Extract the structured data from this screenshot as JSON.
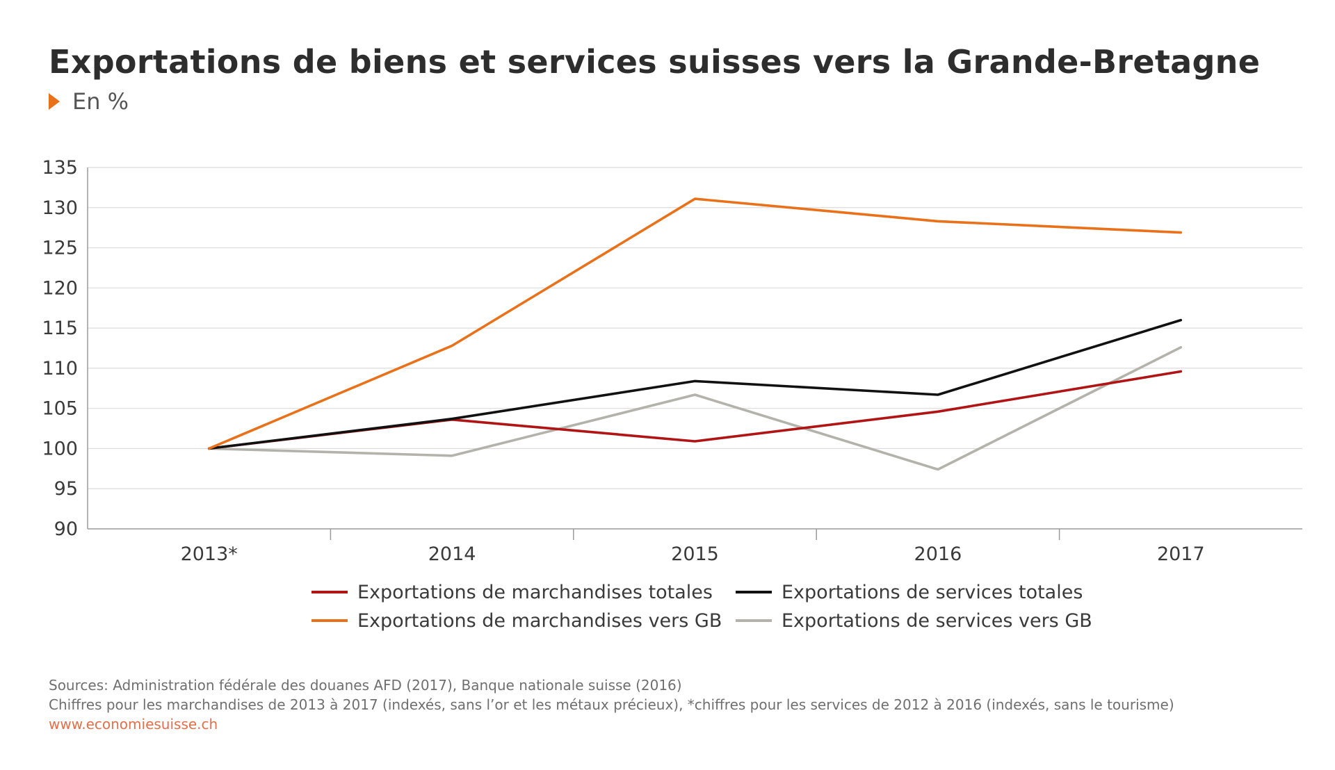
{
  "title": "Exportations de biens et services suisses vers la Grande-Bretagne",
  "subtitle": "En %",
  "colors": {
    "accent": "#e8711a",
    "grid": "#dcdcdc",
    "axis": "#9a9a9a",
    "url": "#e0704a"
  },
  "chart_data": {
    "type": "line",
    "title": "Exportations de biens et services suisses vers la Grande-Bretagne",
    "subtitle": "En %",
    "categories": [
      "2013*",
      "2014",
      "2015",
      "2016",
      "2017"
    ],
    "ylim": [
      90,
      135
    ],
    "yticks": [
      90,
      95,
      100,
      105,
      110,
      115,
      120,
      125,
      130,
      135
    ],
    "grid": true,
    "legend_position": "bottom",
    "series": [
      {
        "name": "Exportations de marchandises totales",
        "color": "#b01414",
        "values": [
          100,
          103.6,
          100.9,
          104.6,
          109.6
        ]
      },
      {
        "name": "Exportations de services totales",
        "color": "#111111",
        "values": [
          100,
          103.7,
          108.4,
          106.7,
          116
        ]
      },
      {
        "name": "Exportations de marchandises vers GB",
        "color": "#e8711a",
        "values": [
          100,
          112.8,
          131.1,
          128.3,
          126.9
        ]
      },
      {
        "name": "Exportations de services vers GB",
        "color": "#b3b3ab",
        "values": [
          100,
          99.1,
          106.7,
          97.4,
          112.6
        ]
      }
    ]
  },
  "legend": [
    {
      "label": "Exportations de marchandises totales",
      "color": "#b01414"
    },
    {
      "label": "Exportations de services totales",
      "color": "#111111"
    },
    {
      "label": "Exportations de marchandises vers GB",
      "color": "#e8711a"
    },
    {
      "label": "Exportations de services vers GB",
      "color": "#b3b3ab"
    }
  ],
  "footer": {
    "sources": "Sources: Administration fédérale des douanes AFD (2017), Banque nationale suisse (2016)",
    "note": "Chiffres pour les marchandises de 2013 à 2017 (indexés, sans l’or et les métaux précieux), *chiffres pour les services de 2012 à 2016 (indexés, sans le tourisme)",
    "url": "www.economiesuisse.ch"
  }
}
